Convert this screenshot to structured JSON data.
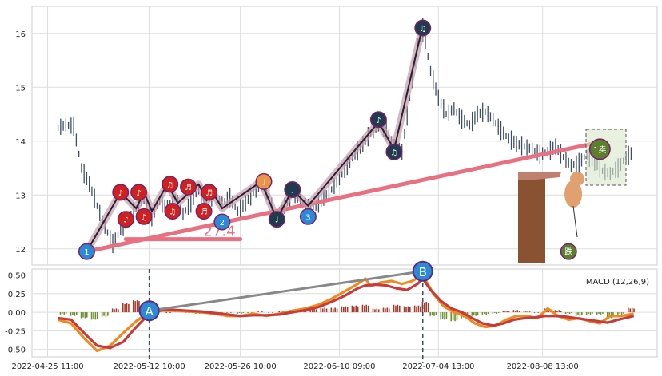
{
  "chart_data": [
    {
      "type": "line",
      "panel": "price",
      "y_ticks": [
        12,
        13,
        14,
        15,
        16
      ],
      "ylim": [
        11.7,
        16.5
      ],
      "x_dates": [
        "2022-04-25 11:00",
        "2022-05-12 10:00",
        "2022-05-26 10:00",
        "2022-06-10 09:00",
        "2022-07-04 13:00",
        "2022-08-08 13:00"
      ],
      "price_series": [
        [
          0,
          14.25
        ],
        [
          3,
          14.3
        ],
        [
          6,
          14.28
        ],
        [
          9,
          13.5
        ],
        [
          12,
          13.2
        ],
        [
          15,
          12.8
        ],
        [
          18,
          12.4
        ],
        [
          21,
          12.1
        ],
        [
          24,
          12.35
        ],
        [
          27,
          12.55
        ],
        [
          30,
          12.75
        ],
        [
          33,
          12.95
        ],
        [
          36,
          12.6
        ],
        [
          39,
          12.9
        ],
        [
          42,
          12.75
        ],
        [
          45,
          12.95
        ],
        [
          48,
          12.65
        ],
        [
          51,
          12.85
        ],
        [
          54,
          13.1
        ],
        [
          57,
          12.9
        ],
        [
          60,
          13.0
        ],
        [
          63,
          12.85
        ],
        [
          66,
          12.95
        ],
        [
          69,
          12.7
        ],
        [
          72,
          12.85
        ],
        [
          75,
          13.05
        ],
        [
          78,
          13.2
        ],
        [
          81,
          13.0
        ],
        [
          84,
          12.5
        ],
        [
          87,
          12.8
        ],
        [
          90,
          13.05
        ],
        [
          93,
          12.9
        ],
        [
          96,
          12.75
        ],
        [
          99,
          12.8
        ],
        [
          102,
          12.95
        ],
        [
          105,
          13.1
        ],
        [
          108,
          13.3
        ],
        [
          111,
          13.55
        ],
        [
          114,
          13.75
        ],
        [
          117,
          13.95
        ],
        [
          120,
          14.15
        ],
        [
          123,
          14.3
        ],
        [
          126,
          14.2
        ],
        [
          129,
          13.95
        ],
        [
          132,
          13.8
        ],
        [
          135,
          14.8
        ],
        [
          138,
          15.8
        ],
        [
          140,
          16.1
        ],
        [
          143,
          15.3
        ],
        [
          146,
          14.8
        ],
        [
          149,
          14.5
        ],
        [
          152,
          14.6
        ],
        [
          155,
          14.4
        ],
        [
          158,
          14.3
        ],
        [
          161,
          14.5
        ],
        [
          164,
          14.55
        ],
        [
          167,
          14.4
        ],
        [
          170,
          14.2
        ],
        [
          173,
          14.05
        ],
        [
          176,
          13.95
        ],
        [
          179,
          13.9
        ],
        [
          182,
          13.85
        ],
        [
          185,
          13.75
        ],
        [
          188,
          13.8
        ],
        [
          191,
          13.9
        ],
        [
          194,
          13.7
        ],
        [
          197,
          13.55
        ],
        [
          200,
          13.6
        ],
        [
          203,
          13.75
        ],
        [
          206,
          13.6
        ],
        [
          209,
          13.45
        ],
        [
          212,
          13.4
        ],
        [
          215,
          13.5
        ],
        [
          218,
          13.7
        ],
        [
          221,
          13.8
        ]
      ],
      "trend_line": [
        [
          11,
          11.95
        ],
        [
          208,
          13.98
        ]
      ],
      "zigzag": [
        [
          11,
          11.95
        ],
        [
          24,
          13.05
        ],
        [
          30,
          12.75
        ],
        [
          33,
          13.05
        ],
        [
          36,
          12.7
        ],
        [
          42,
          13.2
        ],
        [
          46,
          12.85
        ],
        [
          54,
          13.2
        ],
        [
          57,
          12.9
        ],
        [
          60,
          13.0
        ],
        [
          63,
          12.75
        ],
        [
          78,
          13.25
        ],
        [
          84,
          12.55
        ],
        [
          90,
          13.1
        ],
        [
          96,
          12.8
        ],
        [
          123,
          14.35
        ],
        [
          129,
          13.85
        ],
        [
          140,
          16.15
        ]
      ],
      "annotations": [
        {
          "label": "27.4",
          "x": 62,
          "y": 12.3
        }
      ],
      "markers": [
        {
          "x": 11,
          "y": 11.95,
          "text": "1",
          "color": "#2a8ad8"
        },
        {
          "x": 63,
          "y": 12.5,
          "text": "2",
          "color": "#2a8ad8"
        },
        {
          "x": 96,
          "y": 12.6,
          "text": "3",
          "color": "#2a8ad8"
        },
        {
          "x": 24,
          "y": 13.05,
          "text": "♪",
          "color": "#d02020"
        },
        {
          "x": 31,
          "y": 13.05,
          "text": "♪",
          "color": "#d02020"
        },
        {
          "x": 43,
          "y": 13.2,
          "text": "♫",
          "color": "#d02020"
        },
        {
          "x": 50,
          "y": 13.15,
          "text": "♬",
          "color": "#d02020"
        },
        {
          "x": 58,
          "y": 13.05,
          "text": "♬",
          "color": "#d02020"
        },
        {
          "x": 26,
          "y": 12.55,
          "text": "♪",
          "color": "#d02020"
        },
        {
          "x": 33,
          "y": 12.6,
          "text": "♫",
          "color": "#d02020"
        },
        {
          "x": 44,
          "y": 12.7,
          "text": "♫",
          "color": "#d02020"
        },
        {
          "x": 56,
          "y": 12.7,
          "text": "♬",
          "color": "#d02020"
        },
        {
          "x": 79,
          "y": 13.25,
          "text": "♩",
          "color": "#e8954a"
        },
        {
          "x": 84,
          "y": 12.55,
          "text": "♩",
          "color": "#1f3b4d"
        },
        {
          "x": 90,
          "y": 13.1,
          "text": "♩",
          "color": "#1f3b4d"
        },
        {
          "x": 123,
          "y": 14.4,
          "text": "♪",
          "color": "#1f3b4d"
        },
        {
          "x": 129,
          "y": 13.8,
          "text": "♫",
          "color": "#1f3b4d"
        },
        {
          "x": 140,
          "y": 16.1,
          "text": "♫",
          "color": "#1f3b4d"
        },
        {
          "x": 208,
          "y": 13.85,
          "text": "1卖",
          "color": "#5b7f2c"
        },
        {
          "x": 196,
          "y": 11.95,
          "text": "跌",
          "color": "#5b7f2c"
        }
      ]
    },
    {
      "type": "line",
      "panel": "macd",
      "title": "MACD (12,26,9)",
      "y_ticks": [
        -0.5,
        -0.25,
        0.0,
        0.25,
        0.5
      ],
      "ylim": [
        -0.6,
        0.58
      ],
      "x_dates": [
        "2022-04-25 11:00",
        "2022-05-12 10:00",
        "2022-05-26 10:00",
        "2022-06-10 09:00",
        "2022-07-04 13:00",
        "2022-08-08 13:00"
      ],
      "macd_orange": [
        [
          0,
          -0.1
        ],
        [
          5,
          -0.15
        ],
        [
          10,
          -0.35
        ],
        [
          15,
          -0.52
        ],
        [
          20,
          -0.45
        ],
        [
          25,
          -0.28
        ],
        [
          30,
          -0.12
        ],
        [
          35,
          0.0
        ],
        [
          40,
          0.02
        ],
        [
          45,
          0.02
        ],
        [
          50,
          0.01
        ],
        [
          55,
          0.0
        ],
        [
          60,
          -0.02
        ],
        [
          65,
          -0.05
        ],
        [
          70,
          -0.05
        ],
        [
          75,
          -0.02
        ],
        [
          80,
          -0.05
        ],
        [
          85,
          -0.02
        ],
        [
          90,
          0.02
        ],
        [
          95,
          0.05
        ],
        [
          100,
          0.1
        ],
        [
          105,
          0.18
        ],
        [
          110,
          0.28
        ],
        [
          115,
          0.38
        ],
        [
          118,
          0.45
        ],
        [
          120,
          0.35
        ],
        [
          124,
          0.4
        ],
        [
          128,
          0.42
        ],
        [
          132,
          0.38
        ],
        [
          136,
          0.42
        ],
        [
          140,
          0.5
        ],
        [
          144,
          0.25
        ],
        [
          148,
          0.08
        ],
        [
          152,
          0.0
        ],
        [
          156,
          -0.05
        ],
        [
          160,
          -0.15
        ],
        [
          164,
          -0.2
        ],
        [
          168,
          -0.18
        ],
        [
          172,
          -0.1
        ],
        [
          176,
          -0.05
        ],
        [
          180,
          -0.05
        ],
        [
          184,
          -0.08
        ],
        [
          188,
          0.05
        ],
        [
          192,
          -0.05
        ],
        [
          196,
          -0.1
        ],
        [
          200,
          -0.08
        ],
        [
          204,
          -0.12
        ],
        [
          208,
          -0.15
        ],
        [
          212,
          -0.05
        ],
        [
          216,
          -0.05
        ],
        [
          221,
          -0.02
        ]
      ],
      "macd_red": [
        [
          0,
          -0.08
        ],
        [
          5,
          -0.1
        ],
        [
          10,
          -0.28
        ],
        [
          15,
          -0.45
        ],
        [
          20,
          -0.48
        ],
        [
          25,
          -0.4
        ],
        [
          30,
          -0.2
        ],
        [
          35,
          -0.02
        ],
        [
          40,
          0.03
        ],
        [
          45,
          0.03
        ],
        [
          50,
          0.02
        ],
        [
          55,
          0.01
        ],
        [
          60,
          -0.01
        ],
        [
          65,
          -0.03
        ],
        [
          70,
          -0.05
        ],
        [
          75,
          -0.04
        ],
        [
          80,
          -0.04
        ],
        [
          85,
          -0.03
        ],
        [
          90,
          0.0
        ],
        [
          95,
          0.03
        ],
        [
          100,
          0.07
        ],
        [
          105,
          0.14
        ],
        [
          110,
          0.22
        ],
        [
          115,
          0.32
        ],
        [
          118,
          0.36
        ],
        [
          122,
          0.37
        ],
        [
          126,
          0.36
        ],
        [
          130,
          0.32
        ],
        [
          134,
          0.3
        ],
        [
          138,
          0.38
        ],
        [
          140,
          0.45
        ],
        [
          143,
          0.3
        ],
        [
          147,
          0.15
        ],
        [
          151,
          0.05
        ],
        [
          155,
          0.0
        ],
        [
          159,
          -0.08
        ],
        [
          163,
          -0.15
        ],
        [
          167,
          -0.18
        ],
        [
          171,
          -0.15
        ],
        [
          175,
          -0.1
        ],
        [
          179,
          -0.08
        ],
        [
          183,
          -0.07
        ],
        [
          187,
          -0.05
        ],
        [
          191,
          -0.05
        ],
        [
          195,
          -0.06
        ],
        [
          199,
          -0.08
        ],
        [
          203,
          -0.1
        ],
        [
          207,
          -0.12
        ],
        [
          211,
          -0.14
        ],
        [
          215,
          -0.1
        ],
        [
          221,
          -0.05
        ]
      ],
      "histogram_centers": [
        [
          2,
          -0.03
        ],
        [
          6,
          -0.05
        ],
        [
          10,
          -0.08
        ],
        [
          14,
          -0.1
        ],
        [
          18,
          -0.06
        ],
        [
          22,
          0.05
        ],
        [
          26,
          0.12
        ],
        [
          30,
          0.16
        ],
        [
          34,
          0.1
        ],
        [
          38,
          0.03
        ],
        [
          42,
          0.0
        ],
        [
          46,
          0.01
        ],
        [
          50,
          -0.01
        ],
        [
          54,
          -0.02
        ],
        [
          58,
          -0.02
        ],
        [
          62,
          -0.02
        ],
        [
          66,
          -0.01
        ],
        [
          70,
          -0.02
        ],
        [
          74,
          -0.01
        ],
        [
          78,
          0.01
        ],
        [
          82,
          -0.01
        ],
        [
          86,
          0.02
        ],
        [
          90,
          0.03
        ],
        [
          94,
          0.05
        ],
        [
          98,
          0.05
        ],
        [
          102,
          0.06
        ],
        [
          106,
          0.06
        ],
        [
          110,
          0.08
        ],
        [
          114,
          0.09
        ],
        [
          118,
          0.1
        ],
        [
          122,
          0.05
        ],
        [
          126,
          0.06
        ],
        [
          130,
          0.1
        ],
        [
          134,
          0.08
        ],
        [
          138,
          0.09
        ],
        [
          141,
          0.14
        ],
        [
          144,
          -0.05
        ],
        [
          148,
          -0.1
        ],
        [
          152,
          -0.12
        ],
        [
          156,
          -0.08
        ],
        [
          160,
          -0.05
        ],
        [
          164,
          -0.03
        ],
        [
          168,
          -0.02
        ],
        [
          172,
          0.02
        ],
        [
          176,
          0.03
        ],
        [
          180,
          0.02
        ],
        [
          184,
          -0.01
        ],
        [
          188,
          0.05
        ],
        [
          192,
          0.03
        ],
        [
          196,
          -0.02
        ],
        [
          200,
          -0.05
        ],
        [
          204,
          -0.03
        ],
        [
          208,
          -0.03
        ],
        [
          212,
          -0.08
        ],
        [
          216,
          -0.03
        ],
        [
          220,
          0.06
        ]
      ],
      "markers": [
        {
          "label": "A",
          "x": 35,
          "y": 0.02
        },
        {
          "label": "B",
          "x": 140,
          "y": 0.55
        }
      ],
      "connector": [
        [
          35,
          0.02
        ],
        [
          140,
          0.55
        ]
      ],
      "vlines_x": [
        35,
        140
      ]
    }
  ]
}
